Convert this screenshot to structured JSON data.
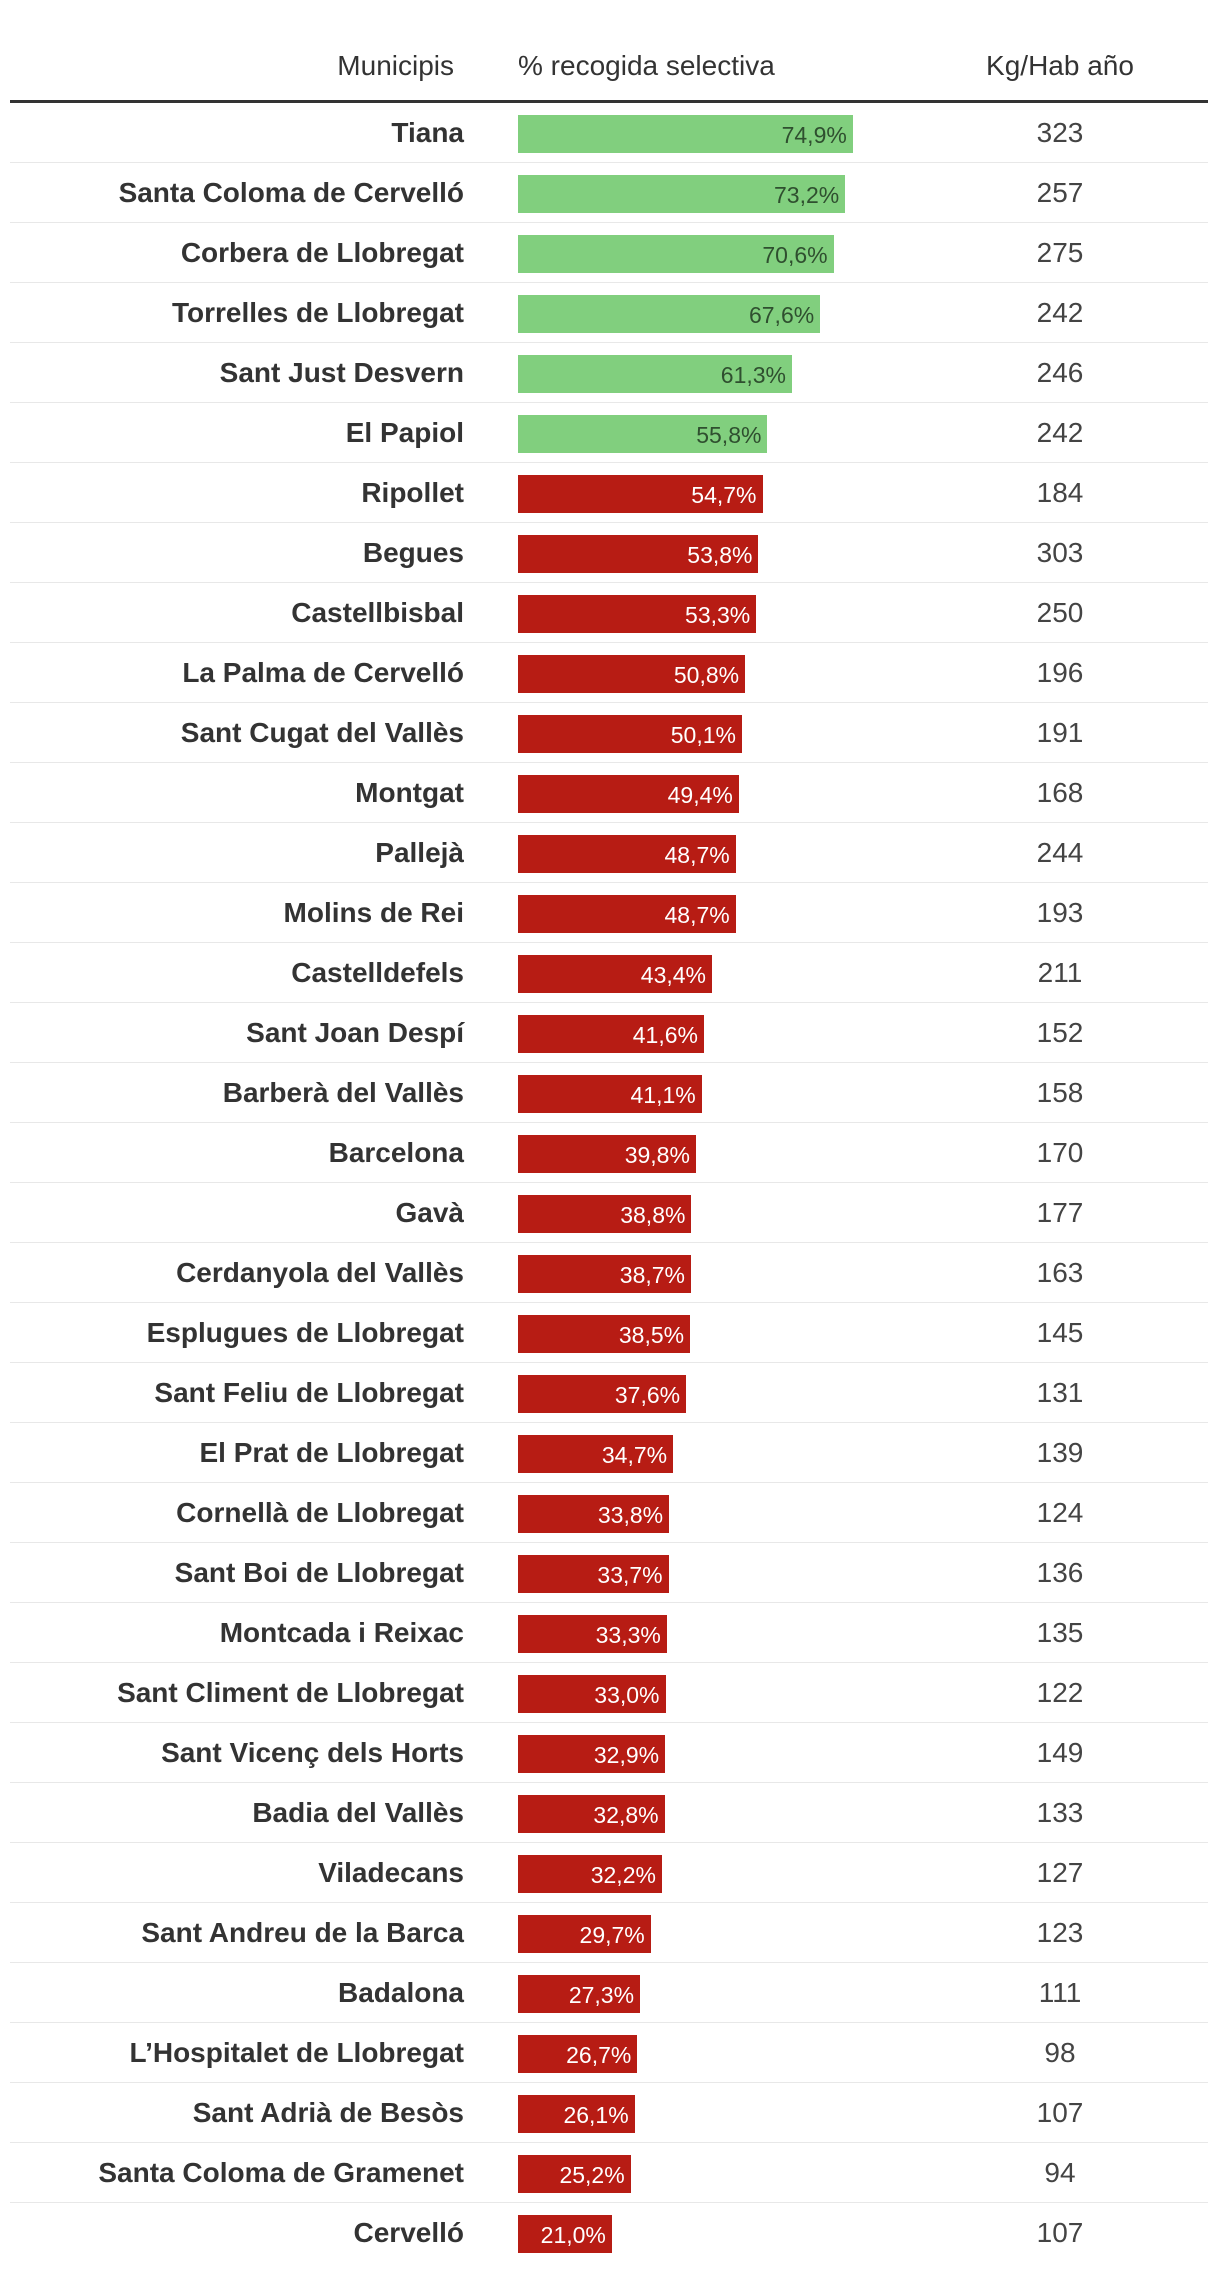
{
  "header": {
    "municipis": "Municipis",
    "pct": "% recogida selectiva",
    "kg": "Kg/Hab año"
  },
  "colors": {
    "high": "#81cf7e",
    "low": "#b71c14",
    "high_label": "#2f4f2f",
    "low_label": "#ffffff"
  },
  "chart_data": {
    "type": "table",
    "columns": [
      "Municipis",
      "% recogida selectiva",
      "Kg/Hab año"
    ],
    "rows": [
      {
        "name": "Tiana",
        "pct": 74.9,
        "pct_label": "74,9%",
        "kg": "323",
        "status": "high"
      },
      {
        "name": "Santa Coloma de Cervelló",
        "pct": 73.2,
        "pct_label": "73,2%",
        "kg": "257",
        "status": "high"
      },
      {
        "name": "Corbera de Llobregat",
        "pct": 70.6,
        "pct_label": "70,6%",
        "kg": "275",
        "status": "high"
      },
      {
        "name": "Torrelles de Llobregat",
        "pct": 67.6,
        "pct_label": "67,6%",
        "kg": "242",
        "status": "high"
      },
      {
        "name": "Sant Just Desvern",
        "pct": 61.3,
        "pct_label": "61,3%",
        "kg": "246",
        "status": "high"
      },
      {
        "name": "El Papiol",
        "pct": 55.8,
        "pct_label": "55,8%",
        "kg": "242",
        "status": "high"
      },
      {
        "name": "Ripollet",
        "pct": 54.7,
        "pct_label": "54,7%",
        "kg": "184",
        "status": "low"
      },
      {
        "name": "Begues",
        "pct": 53.8,
        "pct_label": "53,8%",
        "kg": "303",
        "status": "low"
      },
      {
        "name": "Castellbisbal",
        "pct": 53.3,
        "pct_label": "53,3%",
        "kg": "250",
        "status": "low"
      },
      {
        "name": "La Palma de Cervelló",
        "pct": 50.8,
        "pct_label": "50,8%",
        "kg": "196",
        "status": "low"
      },
      {
        "name": "Sant Cugat del Vallès",
        "pct": 50.1,
        "pct_label": "50,1%",
        "kg": "191",
        "status": "low"
      },
      {
        "name": "Montgat",
        "pct": 49.4,
        "pct_label": "49,4%",
        "kg": "168",
        "status": "low"
      },
      {
        "name": "Pallejà",
        "pct": 48.7,
        "pct_label": "48,7%",
        "kg": "244",
        "status": "low"
      },
      {
        "name": "Molins de Rei",
        "pct": 48.7,
        "pct_label": "48,7%",
        "kg": "193",
        "status": "low"
      },
      {
        "name": "Castelldefels",
        "pct": 43.4,
        "pct_label": "43,4%",
        "kg": "211",
        "status": "low"
      },
      {
        "name": "Sant Joan Despí",
        "pct": 41.6,
        "pct_label": "41,6%",
        "kg": "152",
        "status": "low"
      },
      {
        "name": "Barberà del Vallès",
        "pct": 41.1,
        "pct_label": "41,1%",
        "kg": "158",
        "status": "low"
      },
      {
        "name": "Barcelona",
        "pct": 39.8,
        "pct_label": "39,8%",
        "kg": "170",
        "status": "low"
      },
      {
        "name": "Gavà",
        "pct": 38.8,
        "pct_label": "38,8%",
        "kg": "177",
        "status": "low"
      },
      {
        "name": "Cerdanyola del Vallès",
        "pct": 38.7,
        "pct_label": "38,7%",
        "kg": "163",
        "status": "low"
      },
      {
        "name": "Esplugues de Llobregat",
        "pct": 38.5,
        "pct_label": "38,5%",
        "kg": "145",
        "status": "low"
      },
      {
        "name": "Sant Feliu de Llobregat",
        "pct": 37.6,
        "pct_label": "37,6%",
        "kg": "131",
        "status": "low"
      },
      {
        "name": "El Prat de Llobregat",
        "pct": 34.7,
        "pct_label": "34,7%",
        "kg": "139",
        "status": "low"
      },
      {
        "name": "Cornellà de Llobregat",
        "pct": 33.8,
        "pct_label": "33,8%",
        "kg": "124",
        "status": "low"
      },
      {
        "name": "Sant Boi de Llobregat",
        "pct": 33.7,
        "pct_label": "33,7%",
        "kg": "136",
        "status": "low"
      },
      {
        "name": "Montcada i Reixac",
        "pct": 33.3,
        "pct_label": "33,3%",
        "kg": "135",
        "status": "low"
      },
      {
        "name": "Sant Climent de Llobregat",
        "pct": 33.0,
        "pct_label": "33,0%",
        "kg": "122",
        "status": "low"
      },
      {
        "name": "Sant Vicenç dels Horts",
        "pct": 32.9,
        "pct_label": "32,9%",
        "kg": "149",
        "status": "low"
      },
      {
        "name": "Badia del Vallès",
        "pct": 32.8,
        "pct_label": "32,8%",
        "kg": "133",
        "status": "low"
      },
      {
        "name": "Viladecans",
        "pct": 32.2,
        "pct_label": "32,2%",
        "kg": "127",
        "status": "low"
      },
      {
        "name": "Sant Andreu de la Barca",
        "pct": 29.7,
        "pct_label": "29,7%",
        "kg": "123",
        "status": "low"
      },
      {
        "name": "Badalona",
        "pct": 27.3,
        "pct_label": "27,3%",
        "kg": "111",
        "status": "low"
      },
      {
        "name": "L’Hospitalet de Llobregat",
        "pct": 26.7,
        "pct_label": "26,7%",
        "kg": "98",
        "status": "low"
      },
      {
        "name": "Sant Adrià de Besòs",
        "pct": 26.1,
        "pct_label": "26,1%",
        "kg": "107",
        "status": "low"
      },
      {
        "name": "Santa Coloma de Gramenet",
        "pct": 25.2,
        "pct_label": "25,2%",
        "kg": "94",
        "status": "low"
      },
      {
        "name": "Cervelló",
        "pct": 21.0,
        "pct_label": "21,0%",
        "kg": "107",
        "status": "low"
      }
    ]
  }
}
